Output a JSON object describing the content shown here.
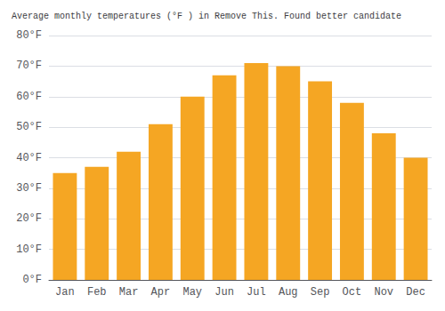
{
  "chart_data": {
    "type": "bar",
    "title": "Average monthly temperatures (°F ) in Remove This. Found better candidate",
    "categories": [
      "Jan",
      "Feb",
      "Mar",
      "Apr",
      "May",
      "Jun",
      "Jul",
      "Aug",
      "Sep",
      "Oct",
      "Nov",
      "Dec"
    ],
    "values": [
      35,
      37,
      42,
      51,
      60,
      67,
      71,
      70,
      65,
      58,
      48,
      40
    ],
    "color": "#F5A623",
    "ylim": [
      0,
      80
    ],
    "yticks": [
      {
        "value": 0,
        "label": "0°F"
      },
      {
        "value": 10,
        "label": "10°F"
      },
      {
        "value": 20,
        "label": "20°F"
      },
      {
        "value": 30,
        "label": "30°F"
      },
      {
        "value": 40,
        "label": "40°F"
      },
      {
        "value": 50,
        "label": "50°F"
      },
      {
        "value": 60,
        "label": "60°F"
      },
      {
        "value": 70,
        "label": "70°F"
      },
      {
        "value": 80,
        "label": "80°F"
      }
    ],
    "grid": true
  }
}
